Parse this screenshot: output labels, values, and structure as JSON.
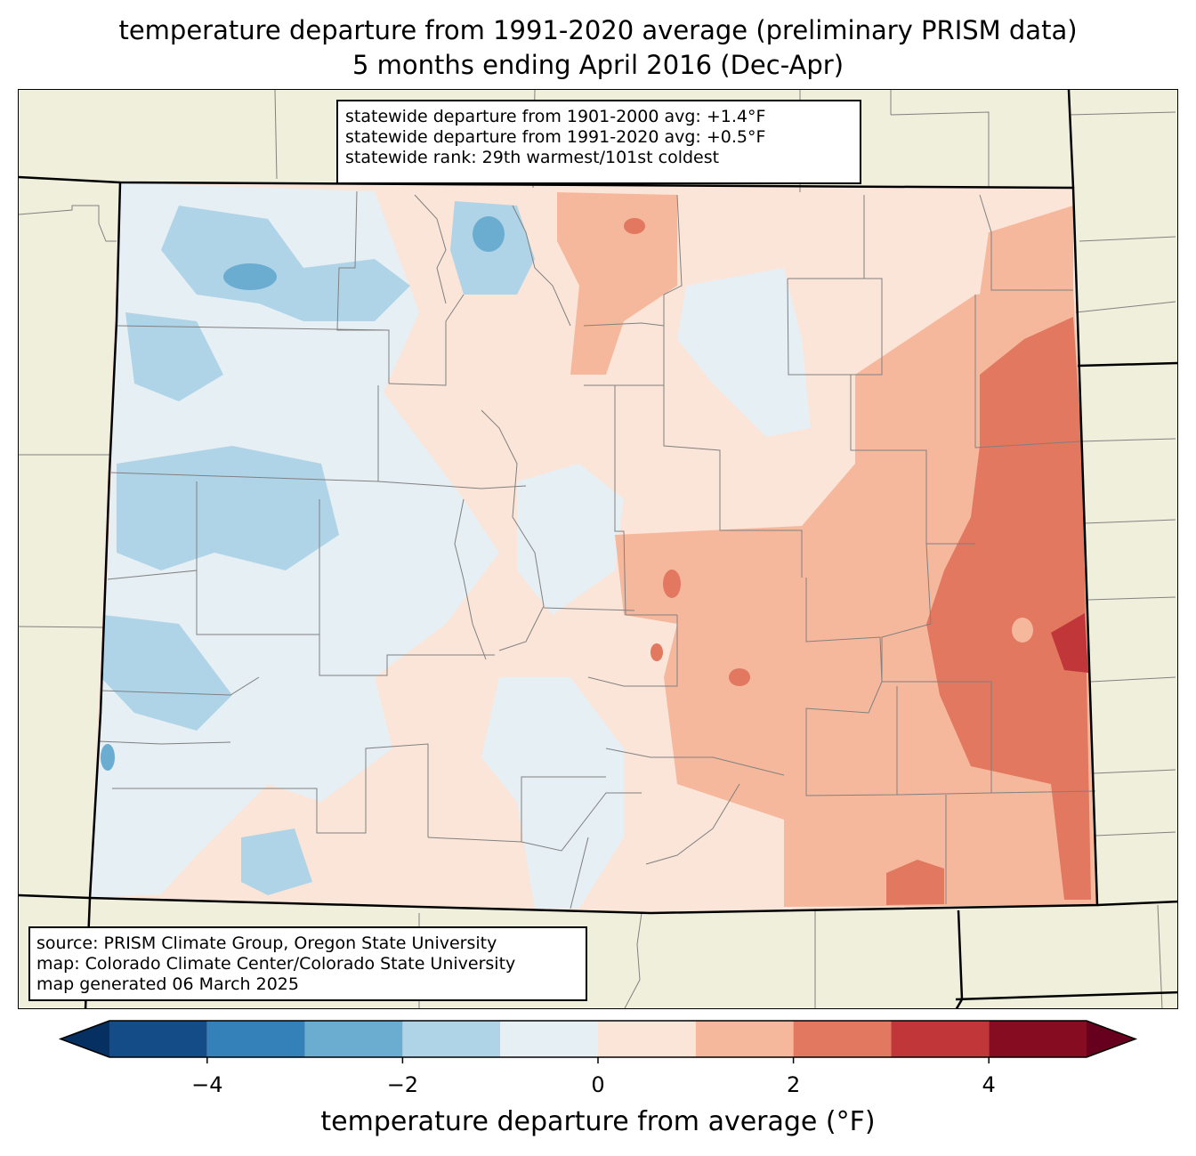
{
  "title": {
    "line1": "temperature departure from 1991-2020 average (preliminary PRISM data)",
    "line2": "5 months ending April 2016 (Dec-Apr)"
  },
  "stats_box": {
    "lines": [
      "statewide departure from 1901-2000 avg: +1.4°F",
      "statewide departure from 1991-2020 avg: +0.5°F",
      "statewide rank: 29th warmest/101st coldest"
    ]
  },
  "source_box": {
    "lines": [
      "source: PRISM Climate Group, Oregon State University",
      "map: Colorado Climate Center/Colorado State University",
      "map generated 06 March 2025"
    ]
  },
  "colorbar": {
    "label": "temperature departure from average (°F)",
    "bounds": [
      -5,
      5
    ],
    "step": 1,
    "ticks": [
      -4,
      -2,
      0,
      2,
      4
    ],
    "tick_labels": [
      "−4",
      "−2",
      "0",
      "2",
      "4"
    ],
    "colors": [
      "#144c87",
      "#3480b9",
      "#6bacd1",
      "#b0d4e7",
      "#e6eff4",
      "#fbe5d8",
      "#f6b89c",
      "#e1785f",
      "#c13639",
      "#860c22"
    ],
    "under_color": "#053061",
    "over_color": "#67001f"
  },
  "map": {
    "land_color": "#f0efdc",
    "state_border_color": "#000000",
    "county_border_color": "#808080",
    "legend_location": "bottom",
    "summary": "Colorado map of Dec 2015-Apr 2016 temperature departure; western half near or slightly below average (0 to -3°F), eastern plains above average (+1 to +4°F)"
  }
}
